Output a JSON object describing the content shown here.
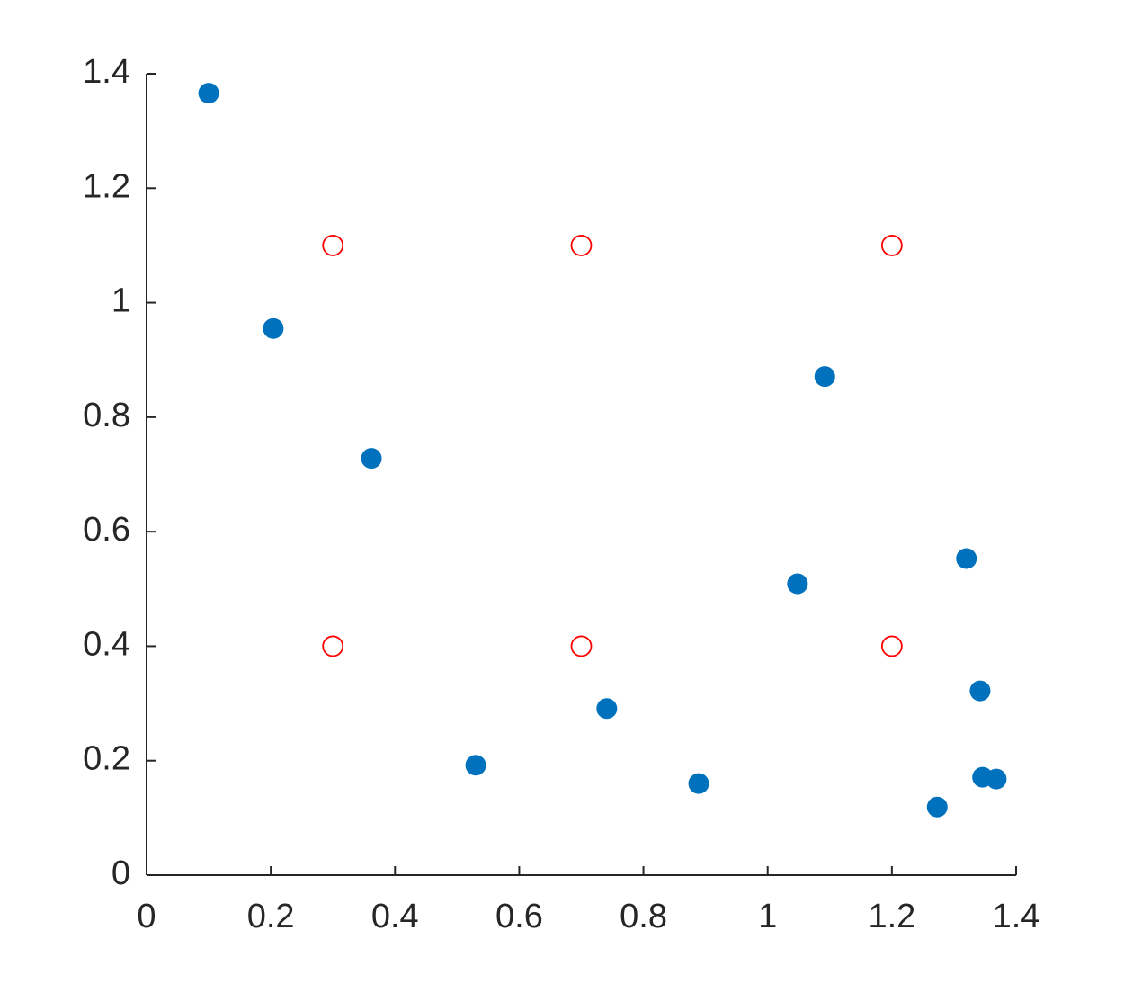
{
  "chart_data": {
    "type": "scatter",
    "xlim": [
      0,
      1.4
    ],
    "ylim": [
      0,
      1.4
    ],
    "xticks": [
      0,
      0.2,
      0.4,
      0.6,
      0.8,
      1,
      1.2,
      1.4
    ],
    "yticks": [
      0,
      0.2,
      0.4,
      0.6,
      0.8,
      1,
      1.2,
      1.4
    ],
    "grid": false,
    "series": [
      {
        "color": "#0072bd",
        "filled": true,
        "x": [
          0.1,
          0.204,
          0.362,
          0.53,
          0.741,
          0.889,
          1.048,
          1.092,
          1.32,
          1.342,
          1.346,
          1.368,
          1.273
        ],
        "values": [
          1.366,
          0.955,
          0.728,
          0.192,
          0.291,
          0.16,
          0.509,
          0.871,
          0.553,
          0.322,
          0.171,
          0.168,
          0.119
        ]
      },
      {
        "color": "#ff0000",
        "filled": false,
        "x": [
          0.3,
          0.7,
          1.2,
          0.3,
          0.7,
          1.2
        ],
        "values": [
          1.1,
          1.1,
          1.1,
          0.4,
          0.4,
          0.4
        ]
      }
    ]
  }
}
